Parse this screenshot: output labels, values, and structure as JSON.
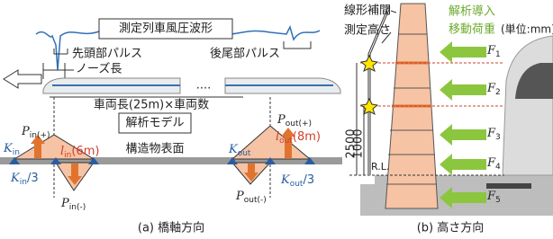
{
  "left": {
    "waveform_title": "測定列車風圧波形",
    "head_pulse": "先頭部パルス",
    "tail_pulse": "後尾部パルス",
    "nose_length": "ノーズ長",
    "ellipsis": "....",
    "car_length": "車両長(25m)×車両数",
    "model_title": "解析モデル",
    "surface": "構造物表面",
    "p_in_plus": {
      "main": "P",
      "sub": "in(+)"
    },
    "l_in": {
      "main": "l",
      "sub": "in",
      "tail": "(6m)"
    },
    "k_in": {
      "main": "K",
      "sub": "in"
    },
    "k_in_third": {
      "main": "K",
      "sub": "in",
      "tail": "/3"
    },
    "p_in_minus": {
      "main": "P",
      "sub": "in(-)"
    },
    "p_out_plus": {
      "main": "P",
      "sub": "out(+)"
    },
    "l_out": {
      "main": "l",
      "sub": "out",
      "tail": "(8m)"
    },
    "k_out": {
      "main": "K",
      "sub": "out"
    },
    "k_out_third": {
      "main": "K",
      "sub": "out",
      "tail": "/3"
    },
    "p_out_minus": {
      "main": "P",
      "sub": "out(-)"
    },
    "caption": "(a) 橋軸方向"
  },
  "right": {
    "interpolation": "線形補間",
    "measure_height": "測定高さ",
    "load_title_1": "解析導入",
    "load_title_2": "移動荷重",
    "unit": "(単位:mm)",
    "dim_high": "2500",
    "dim_low": "1000",
    "rl": "R.L.",
    "forces": [
      {
        "main": "F",
        "sub": "1"
      },
      {
        "main": "F",
        "sub": "2"
      },
      {
        "main": "F",
        "sub": "3"
      },
      {
        "main": "F",
        "sub": "4"
      },
      {
        "main": "F",
        "sub": "5"
      }
    ],
    "caption": "(b) 高さ方向"
  }
}
